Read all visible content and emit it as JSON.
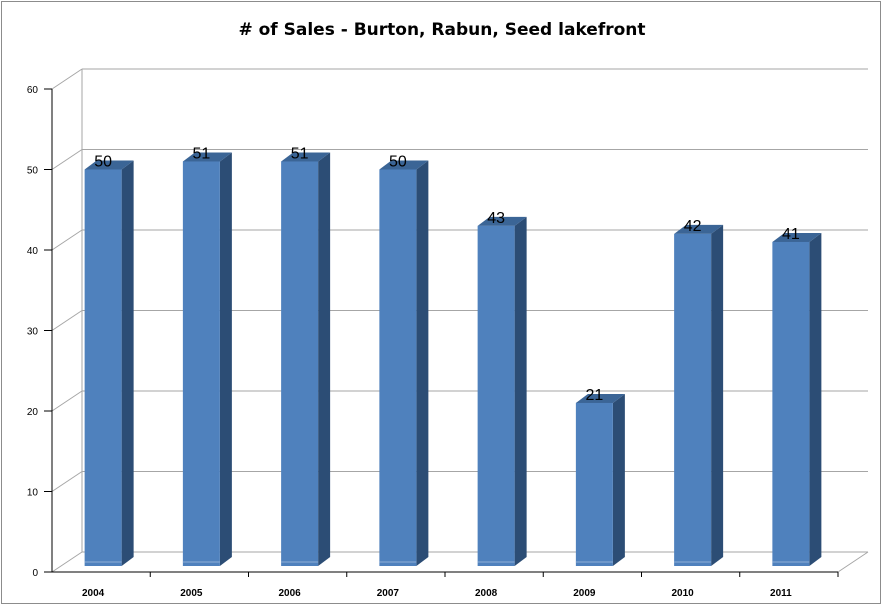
{
  "chart_data": {
    "type": "bar",
    "title": "# of Sales - Burton, Rabun, Seed lakefront",
    "categories": [
      "2004",
      "2005",
      "2006",
      "2007",
      "2008",
      "2009",
      "2010",
      "2011"
    ],
    "values": [
      50,
      51,
      51,
      50,
      43,
      21,
      42,
      41
    ],
    "y_ticks": [
      "0",
      "10",
      "20",
      "30",
      "40",
      "50",
      "60"
    ],
    "ylim": [
      0,
      60
    ],
    "xlabel": "",
    "ylabel": "",
    "grid": true,
    "legend": "none",
    "three_d": true,
    "colors": {
      "bar_front": "#4f81bd",
      "bar_side": "#2c4d75",
      "bar_top": "#3b6596",
      "gridline": "#a6a6a6"
    }
  }
}
